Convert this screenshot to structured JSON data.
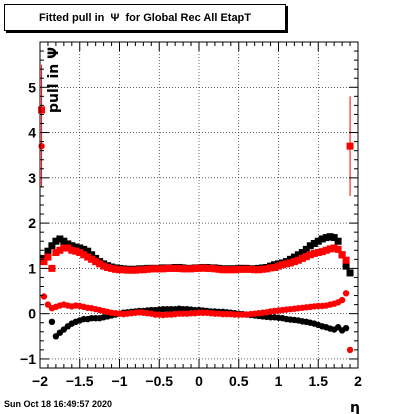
{
  "chart_data": {
    "type": "scatter",
    "title": "Fitted pull in  Ψ  for Global Rec All EtapT",
    "xlabel": "η",
    "ylabel": "pull in  Ψ",
    "xlim": [
      -2,
      2
    ],
    "ylim": [
      -1.2,
      6.0
    ],
    "x_ticks": [
      -2,
      -1.5,
      -1,
      -0.5,
      0,
      0.5,
      1,
      1.5,
      2
    ],
    "x_tick_labels": [
      "−2",
      "−1.5",
      "−1",
      "−0.5",
      "0",
      "0.5",
      "1",
      "1.5",
      "2"
    ],
    "y_ticks": [
      -1,
      0,
      1,
      2,
      3,
      4,
      5
    ],
    "y_tick_labels": [
      "−1",
      "0",
      "1",
      "2",
      "3",
      "4",
      "5"
    ],
    "grid": true,
    "timestamp": "Sun Oct 18 16:49:57 2020",
    "series": [
      {
        "color": "#000000",
        "marker": "square",
        "x": [
          -1.95,
          -1.9,
          -1.85,
          -1.8,
          -1.75,
          -1.7,
          -1.65,
          -1.6,
          -1.55,
          -1.5,
          -1.45,
          -1.4,
          -1.35,
          -1.3,
          -1.25,
          -1.2,
          -1.15,
          -1.1,
          -1.05,
          -1.0,
          -0.95,
          -0.9,
          -0.85,
          -0.8,
          -0.75,
          -0.7,
          -0.65,
          -0.6,
          -0.55,
          -0.5,
          -0.45,
          -0.4,
          -0.35,
          -0.3,
          -0.25,
          -0.2,
          -0.15,
          -0.1,
          -0.05,
          0.0,
          0.05,
          0.1,
          0.15,
          0.2,
          0.25,
          0.3,
          0.35,
          0.4,
          0.45,
          0.5,
          0.55,
          0.6,
          0.65,
          0.7,
          0.75,
          0.8,
          0.85,
          0.9,
          0.95,
          1.0,
          1.05,
          1.1,
          1.15,
          1.2,
          1.25,
          1.3,
          1.35,
          1.4,
          1.45,
          1.5,
          1.55,
          1.6,
          1.65,
          1.7,
          1.75,
          1.8,
          1.85,
          1.9
        ],
        "y": [
          1.22,
          1.38,
          1.5,
          1.6,
          1.65,
          1.6,
          1.54,
          1.5,
          1.47,
          1.45,
          1.42,
          1.38,
          1.3,
          1.22,
          1.15,
          1.1,
          1.06,
          1.03,
          1.01,
          1.0,
          0.99,
          0.98,
          0.98,
          0.98,
          0.99,
          0.99,
          1.0,
          1.0,
          1.0,
          1.0,
          1.01,
          1.01,
          1.01,
          1.02,
          1.02,
          1.01,
          1.0,
          1.0,
          1.01,
          1.01,
          1.02,
          1.02,
          1.01,
          1.01,
          1.0,
          0.99,
          0.99,
          0.99,
          0.99,
          1.0,
          1.0,
          1.0,
          0.99,
          0.99,
          1.0,
          1.01,
          1.02,
          1.05,
          1.08,
          1.1,
          1.12,
          1.15,
          1.2,
          1.25,
          1.3,
          1.35,
          1.42,
          1.5,
          1.55,
          1.6,
          1.65,
          1.68,
          1.7,
          1.68,
          1.6,
          1.3,
          1.05,
          0.9
        ]
      },
      {
        "color": "#ff0000",
        "marker": "square",
        "x": [
          -1.98,
          -1.95,
          -1.9,
          -1.85,
          -1.8,
          -1.75,
          -1.7,
          -1.65,
          -1.6,
          -1.55,
          -1.5,
          -1.45,
          -1.4,
          -1.35,
          -1.3,
          -1.25,
          -1.2,
          -1.15,
          -1.1,
          -1.05,
          -1.0,
          -0.95,
          -0.9,
          -0.85,
          -0.8,
          -0.75,
          -0.7,
          -0.65,
          -0.6,
          -0.55,
          -0.5,
          -0.45,
          -0.4,
          -0.35,
          -0.3,
          -0.25,
          -0.2,
          -0.15,
          -0.1,
          -0.05,
          0.0,
          0.05,
          0.1,
          0.15,
          0.2,
          0.25,
          0.3,
          0.35,
          0.4,
          0.45,
          0.5,
          0.55,
          0.6,
          0.65,
          0.7,
          0.75,
          0.8,
          0.85,
          0.9,
          0.95,
          1.0,
          1.05,
          1.1,
          1.15,
          1.2,
          1.25,
          1.3,
          1.35,
          1.4,
          1.45,
          1.5,
          1.55,
          1.6,
          1.65,
          1.7,
          1.75,
          1.8,
          1.85,
          1.9
        ],
        "y": [
          4.5,
          1.15,
          1.25,
          1.0,
          1.35,
          1.4,
          1.45,
          1.45,
          1.4,
          1.38,
          1.35,
          1.3,
          1.25,
          1.2,
          1.15,
          1.1,
          1.05,
          1.02,
          1.0,
          0.98,
          0.97,
          0.97,
          0.96,
          0.96,
          0.96,
          0.97,
          0.97,
          0.98,
          0.99,
          0.99,
          0.99,
          0.99,
          1.0,
          1.0,
          1.0,
          1.0,
          0.99,
          0.99,
          0.99,
          1.0,
          1.0,
          1.01,
          1.0,
          1.0,
          0.99,
          0.98,
          0.97,
          0.97,
          0.97,
          0.97,
          0.98,
          0.98,
          0.98,
          0.98,
          0.97,
          0.97,
          0.98,
          0.99,
          1.01,
          1.02,
          1.05,
          1.08,
          1.1,
          1.12,
          1.15,
          1.18,
          1.22,
          1.26,
          1.3,
          1.33,
          1.35,
          1.37,
          1.4,
          1.43,
          1.45,
          1.42,
          1.3,
          1.18,
          3.7
        ]
      },
      {
        "color": "#000000",
        "marker": "circle",
        "x": [
          -1.85,
          -1.8,
          -1.75,
          -1.7,
          -1.65,
          -1.6,
          -1.55,
          -1.5,
          -1.45,
          -1.4,
          -1.35,
          -1.3,
          -1.25,
          -1.2,
          -1.15,
          -1.1,
          -1.05,
          -1.0,
          -0.95,
          -0.9,
          -0.85,
          -0.8,
          -0.75,
          -0.7,
          -0.65,
          -0.6,
          -0.55,
          -0.5,
          -0.45,
          -0.4,
          -0.35,
          -0.3,
          -0.25,
          -0.2,
          -0.15,
          -0.1,
          -0.05,
          0.0,
          0.05,
          0.1,
          0.15,
          0.2,
          0.25,
          0.3,
          0.35,
          0.4,
          0.45,
          0.5,
          0.55,
          0.6,
          0.65,
          0.7,
          0.75,
          0.8,
          0.85,
          0.9,
          0.95,
          1.0,
          1.05,
          1.1,
          1.15,
          1.2,
          1.25,
          1.3,
          1.35,
          1.4,
          1.45,
          1.5,
          1.55,
          1.6,
          1.65,
          1.7,
          1.75,
          1.8,
          1.85
        ],
        "y": [
          -0.18,
          -0.5,
          -0.42,
          -0.35,
          -0.28,
          -0.22,
          -0.18,
          -0.15,
          -0.12,
          -0.12,
          -0.1,
          -0.1,
          -0.1,
          -0.08,
          -0.06,
          -0.04,
          -0.02,
          0.0,
          0.02,
          0.03,
          0.04,
          0.05,
          0.06,
          0.06,
          0.07,
          0.08,
          0.08,
          0.09,
          0.1,
          0.1,
          0.1,
          0.1,
          0.11,
          0.1,
          0.1,
          0.09,
          0.08,
          0.08,
          0.07,
          0.06,
          0.05,
          0.05,
          0.04,
          0.04,
          0.03,
          0.02,
          0.01,
          0.0,
          -0.01,
          -0.02,
          -0.03,
          -0.04,
          -0.05,
          -0.06,
          -0.07,
          -0.08,
          -0.08,
          -0.09,
          -0.1,
          -0.12,
          -0.13,
          -0.14,
          -0.15,
          -0.17,
          -0.18,
          -0.2,
          -0.22,
          -0.25,
          -0.28,
          -0.3,
          -0.33,
          -0.35,
          -0.3,
          -0.37,
          -0.32
        ]
      },
      {
        "color": "#ff0000",
        "marker": "circle",
        "x": [
          -1.98,
          -1.95,
          -1.9,
          -1.85,
          -1.8,
          -1.75,
          -1.7,
          -1.65,
          -1.6,
          -1.55,
          -1.5,
          -1.45,
          -1.4,
          -1.35,
          -1.3,
          -1.25,
          -1.2,
          -1.15,
          -1.1,
          -1.05,
          -1.0,
          -0.95,
          -0.9,
          -0.85,
          -0.8,
          -0.75,
          -0.7,
          -0.65,
          -0.6,
          -0.55,
          -0.5,
          -0.45,
          -0.4,
          -0.35,
          -0.3,
          -0.25,
          -0.2,
          -0.15,
          -0.1,
          -0.05,
          0.0,
          0.05,
          0.1,
          0.15,
          0.2,
          0.25,
          0.3,
          0.35,
          0.4,
          0.45,
          0.5,
          0.55,
          0.6,
          0.65,
          0.7,
          0.75,
          0.8,
          0.85,
          0.9,
          0.95,
          1.0,
          1.05,
          1.1,
          1.15,
          1.2,
          1.25,
          1.3,
          1.35,
          1.4,
          1.45,
          1.5,
          1.55,
          1.6,
          1.65,
          1.7,
          1.75,
          1.8,
          1.85,
          1.9
        ],
        "y": [
          3.7,
          0.38,
          0.2,
          0.12,
          0.15,
          0.18,
          0.2,
          0.18,
          0.16,
          0.18,
          0.17,
          0.15,
          0.13,
          0.12,
          0.1,
          0.08,
          0.06,
          0.04,
          0.02,
          0.01,
          0.0,
          -0.01,
          0.0,
          0.01,
          0.02,
          0.03,
          0.02,
          0.01,
          0.0,
          -0.02,
          -0.02,
          -0.03,
          -0.02,
          -0.02,
          -0.01,
          0.0,
          0.0,
          0.0,
          0.01,
          0.01,
          0.02,
          0.02,
          0.02,
          0.01,
          0.0,
          0.0,
          -0.01,
          -0.01,
          -0.01,
          -0.02,
          -0.02,
          -0.02,
          -0.02,
          -0.01,
          0.0,
          0.01,
          0.02,
          0.03,
          0.05,
          0.06,
          0.07,
          0.08,
          0.09,
          0.1,
          0.11,
          0.12,
          0.13,
          0.14,
          0.15,
          0.16,
          0.17,
          0.17,
          0.18,
          0.2,
          0.22,
          0.25,
          0.3,
          0.45,
          -0.8
        ]
      }
    ],
    "error_bars": [
      {
        "x": -1.98,
        "y_low": 2.8,
        "y_high": 5.5,
        "color": "#ff0000"
      },
      {
        "x": 1.9,
        "y_low": 2.6,
        "y_high": 4.8,
        "color": "#ff0000"
      }
    ]
  }
}
